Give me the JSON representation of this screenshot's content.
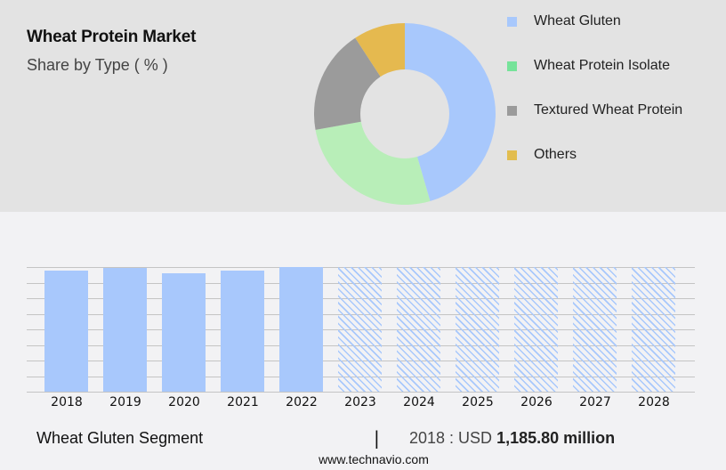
{
  "header": {
    "title": "Wheat Protein Market",
    "subtitle": "Share by Type ( % )"
  },
  "legend": [
    {
      "label": "Wheat Gluten",
      "color": "#a8c8fc"
    },
    {
      "label": "Wheat Protein Isolate",
      "color": "#76e39a"
    },
    {
      "label": "Textured Wheat Protein",
      "color": "#9b9b9b"
    },
    {
      "label": "Others",
      "color": "#e2bd4f"
    }
  ],
  "footer": {
    "segment": "Wheat Gluten Segment",
    "separator": "|",
    "year_prefix": "2018 : USD",
    "value": "1,185.80 million",
    "source": "www.technavio.com"
  },
  "chart_data": [
    {
      "type": "pie",
      "title": "Wheat Protein Market",
      "subtitle": "Share by Type ( % )",
      "donut": true,
      "categories": [
        "Wheat Gluten",
        "Wheat Protein Isolate",
        "Textured Wheat Protein",
        "Others"
      ],
      "values": [
        45.5,
        26.7,
        18.6,
        9.2
      ],
      "colors": [
        "#a8c8fc",
        "#b8eeb8",
        "#9b9b9b",
        "#e5b94f"
      ],
      "legend_position": "right"
    },
    {
      "type": "bar",
      "title": "Wheat Gluten Segment",
      "categories": [
        "2018",
        "2019",
        "2020",
        "2021",
        "2022",
        "2023",
        "2024",
        "2025",
        "2026",
        "2027",
        "2028"
      ],
      "values": [
        1185.8,
        1215,
        1160,
        1185,
        1220,
        null,
        null,
        null,
        null,
        null,
        null
      ],
      "forecast_years": [
        "2023",
        "2024",
        "2025",
        "2026",
        "2027",
        "2028"
      ],
      "xlabel": "",
      "ylabel": "",
      "grid": true,
      "annotation": "2018 : USD 1,185.80 million"
    }
  ]
}
